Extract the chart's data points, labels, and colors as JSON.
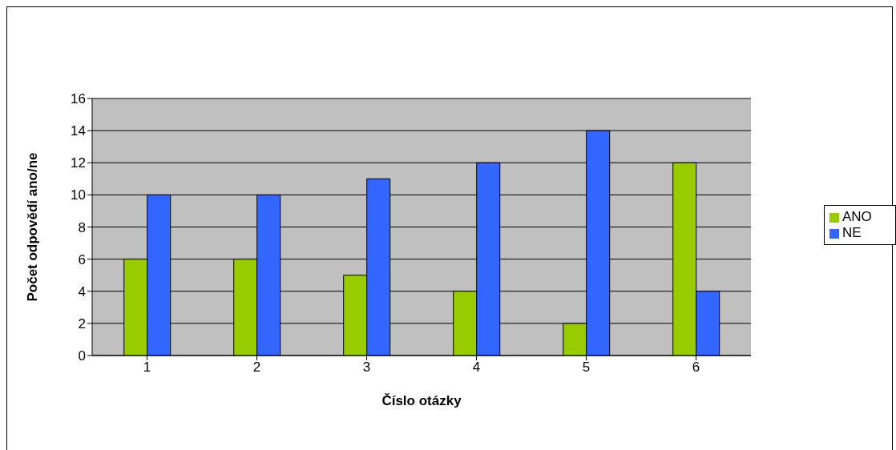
{
  "chart_data": {
    "type": "bar",
    "xlabel": "Číslo otázky",
    "ylabel": "Počet odpovědí ano/ne",
    "categories": [
      "1",
      "2",
      "3",
      "4",
      "5",
      "6"
    ],
    "series": [
      {
        "name": "ANO",
        "color": "#99cc00",
        "values": [
          6,
          6,
          5,
          4,
          2,
          12
        ]
      },
      {
        "name": "NE",
        "color": "#3366ff",
        "values": [
          10,
          10,
          11,
          12,
          14,
          4
        ]
      }
    ],
    "ylim": [
      0,
      16
    ],
    "yticks": [
      0,
      2,
      4,
      6,
      8,
      10,
      12,
      14,
      16
    ],
    "grid": "y",
    "legend": "right"
  }
}
